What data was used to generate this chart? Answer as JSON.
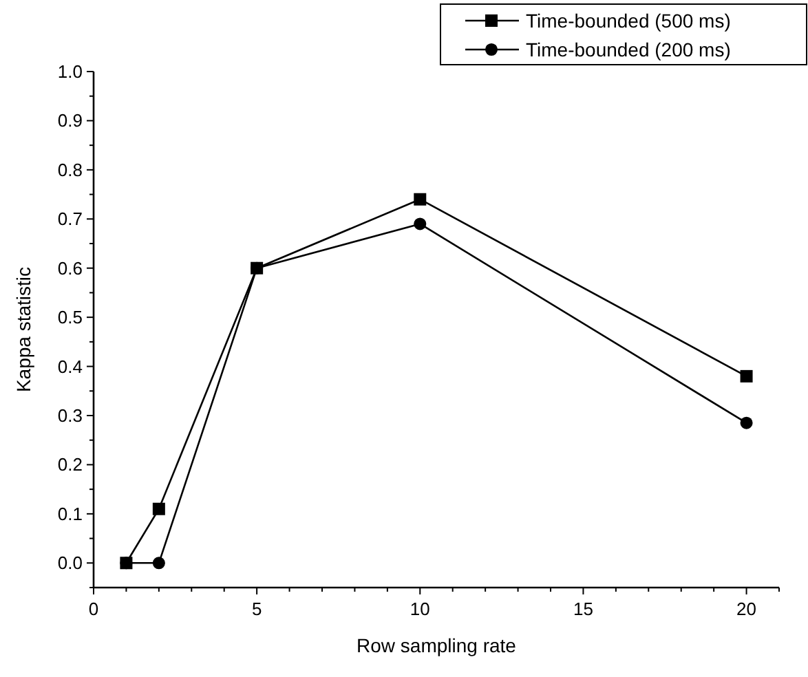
{
  "chart_data": {
    "type": "line",
    "xlabel": "Row sampling rate",
    "ylabel": "Kappa statistic",
    "x": [
      1,
      2,
      5,
      10,
      20
    ],
    "series": [
      {
        "name": "Time-bounded (500 ms)",
        "color": "#000000",
        "marker": "square",
        "values": [
          0,
          0.11,
          0.6,
          0.74,
          0.38
        ]
      },
      {
        "name": "Time-bounded (200 ms)",
        "color": "#000000",
        "marker": "circle",
        "values": [
          0,
          0,
          0.6,
          0.69,
          0.285
        ]
      }
    ],
    "xlim": [
      0,
      21
    ],
    "xticks": [
      0,
      {
        "value": 1,
        "label": null
      },
      {
        "value": 2,
        "label": null
      },
      {
        "value": 3,
        "label": null
      },
      {
        "value": 4,
        "label": null
      },
      5,
      {
        "value": 6,
        "label": null
      },
      {
        "value": 7,
        "label": null
      },
      {
        "value": 8,
        "label": null
      },
      {
        "value": 9,
        "label": null
      },
      10,
      {
        "value": 11,
        "label": null
      },
      {
        "value": 12,
        "label": null
      },
      {
        "value": 13,
        "label": null
      },
      {
        "value": 14,
        "label": null
      },
      15,
      {
        "value": 16,
        "label": null
      },
      {
        "value": 17,
        "label": null
      },
      {
        "value": 18,
        "label": null
      },
      {
        "value": 19,
        "label": null
      },
      20,
      {
        "value": 21,
        "label": null
      }
    ],
    "ylim": [
      -0.05,
      1.0
    ],
    "yticks": [
      {
        "value": -0.05,
        "label": null
      },
      {
        "value": 0,
        "label": "0.0"
      },
      {
        "value": 0.05,
        "label": null
      },
      0.1,
      {
        "value": 0.15,
        "label": null
      },
      0.2,
      {
        "value": 0.25,
        "label": null
      },
      0.3,
      {
        "value": 0.35,
        "label": null
      },
      0.4,
      {
        "value": 0.45,
        "label": null
      },
      0.5,
      {
        "value": 0.55,
        "label": null
      },
      0.6,
      {
        "value": 0.65,
        "label": null
      },
      0.7,
      {
        "value": 0.75,
        "label": null
      },
      0.8,
      {
        "value": 0.85,
        "label": null
      },
      0.9,
      {
        "value": 0.95,
        "label": null
      },
      {
        "value": 1,
        "label": "1.0"
      }
    ],
    "grid": false,
    "legend": "top right",
    "line_style": "solid"
  }
}
